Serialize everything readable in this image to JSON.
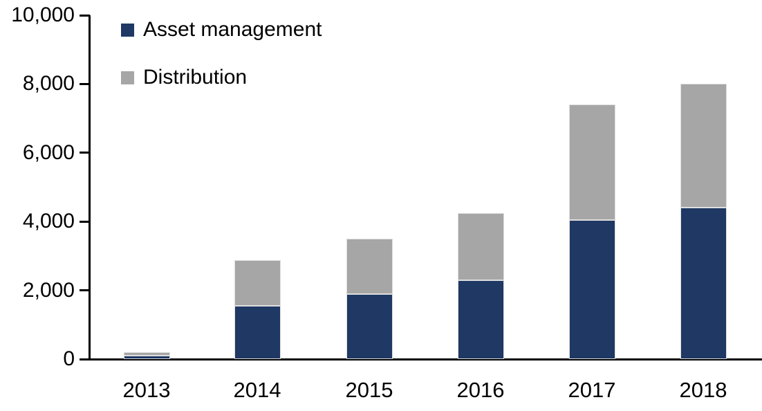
{
  "chart_data": {
    "type": "bar",
    "stacked": true,
    "title": "",
    "xlabel": "",
    "ylabel": "",
    "grid": false,
    "legend_position": "top-left",
    "categories": [
      "2013",
      "2014",
      "2015",
      "2016",
      "2017",
      "2018"
    ],
    "series": [
      {
        "name": "Asset management",
        "color": "#1f3864",
        "values": [
          100,
          1550,
          1900,
          2300,
          4050,
          4400
        ]
      },
      {
        "name": "Distribution",
        "color": "#a6a6a6",
        "values": [
          100,
          1320,
          1600,
          1950,
          3350,
          3600
        ]
      }
    ],
    "totals": [
      200,
      2870,
      3500,
      4250,
      7400,
      8000
    ],
    "ylim": [
      0,
      10000
    ],
    "yticks": [
      {
        "value": 0,
        "label": "0"
      },
      {
        "value": 2000,
        "label": "2,000"
      },
      {
        "value": 4000,
        "label": "4,000"
      },
      {
        "value": 6000,
        "label": "6,000"
      },
      {
        "value": 8000,
        "label": "8,000"
      },
      {
        "value": 10000,
        "label": "10,000"
      }
    ],
    "colors": {
      "axis": "#000000",
      "text": "#000000",
      "background": "#ffffff"
    }
  }
}
